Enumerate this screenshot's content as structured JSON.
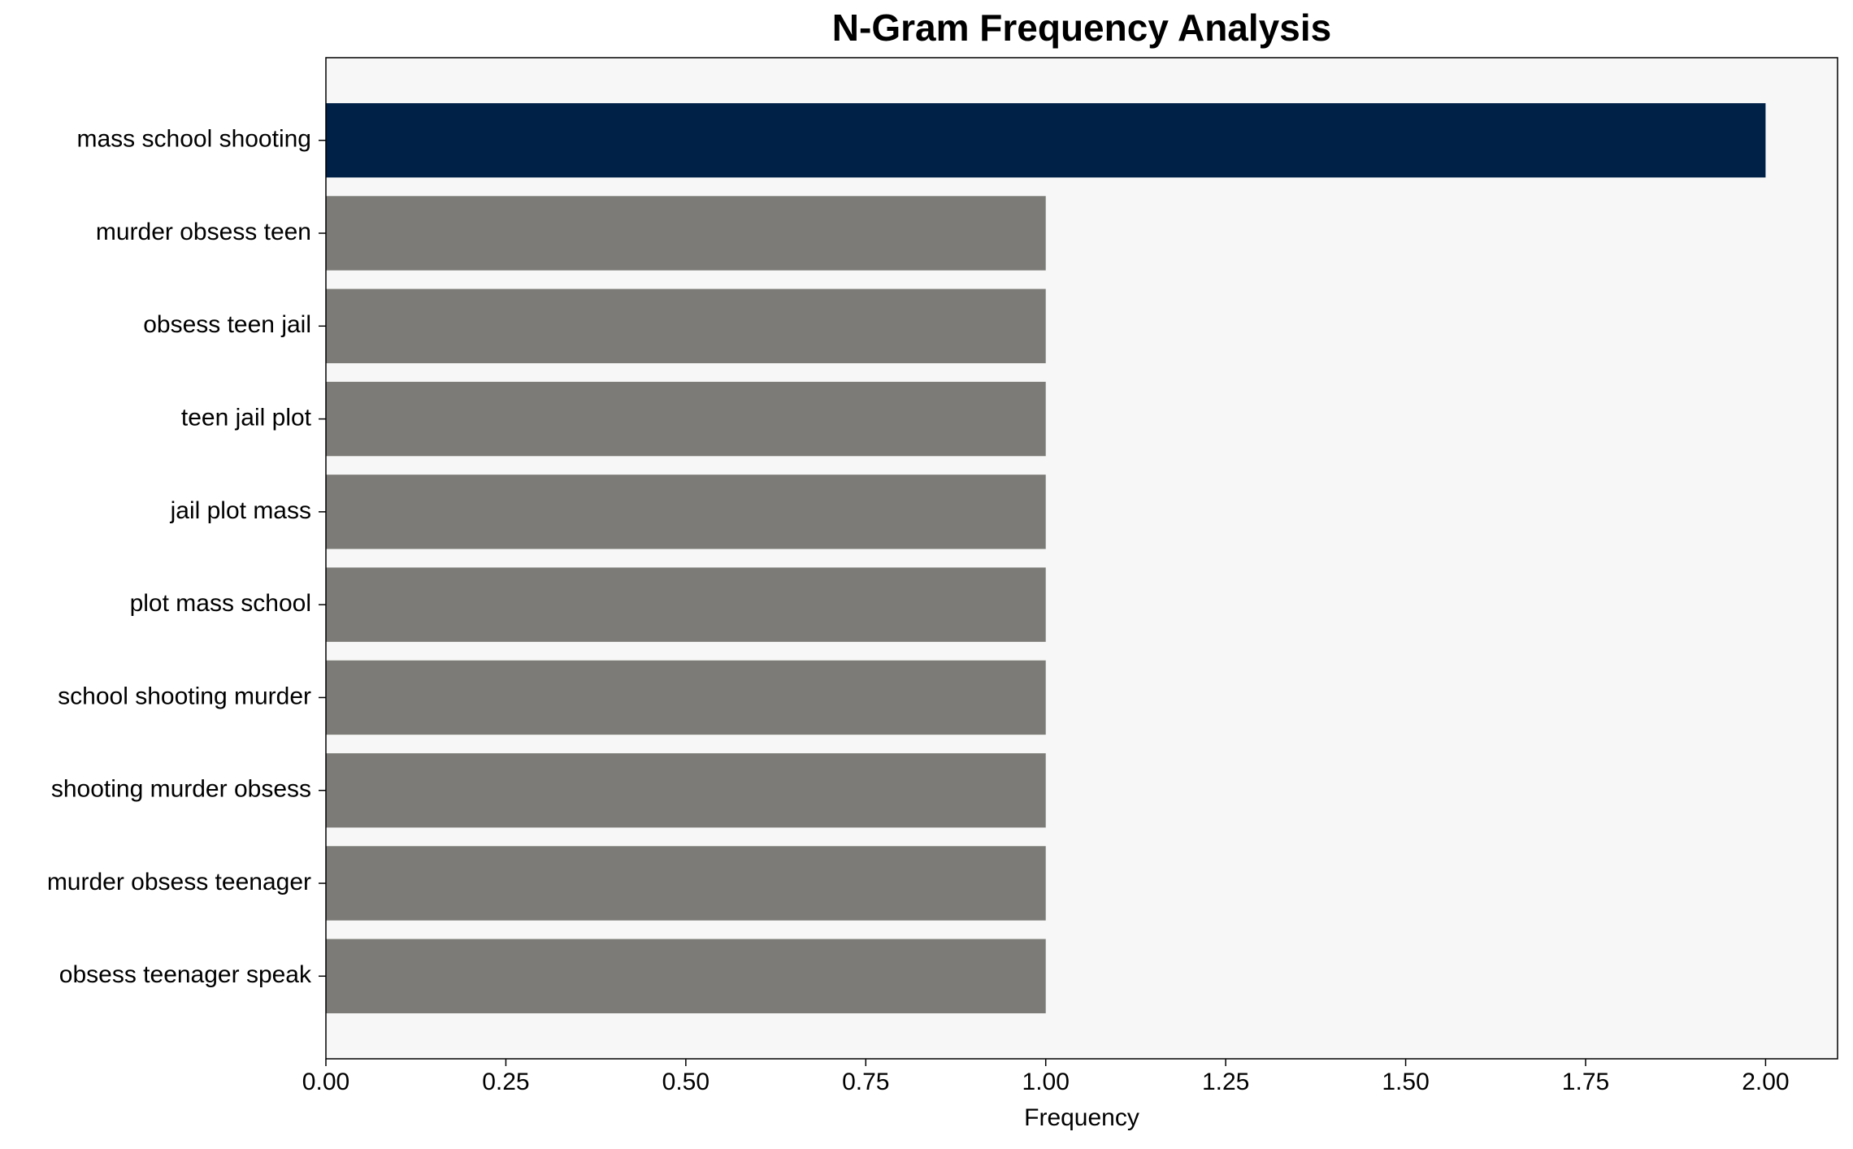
{
  "chart_data": {
    "type": "barh",
    "title": "N-Gram Frequency Analysis",
    "x_label": "Frequency",
    "categories": [
      "mass school shooting",
      "murder obsess teen",
      "obsess teen jail",
      "teen jail plot",
      "jail plot mass",
      "plot mass school",
      "school shooting murder",
      "shooting murder obsess",
      "murder obsess teenager",
      "obsess teenager speak"
    ],
    "values": [
      2,
      1,
      1,
      1,
      1,
      1,
      1,
      1,
      1,
      1
    ],
    "colors": [
      "#002147",
      "#7c7b77",
      "#7c7b77",
      "#7c7b77",
      "#7c7b77",
      "#7c7b77",
      "#7c7b77",
      "#7c7b77",
      "#7c7b77",
      "#7c7b77"
    ],
    "xlim": [
      0,
      2.1
    ],
    "xticks": [
      {
        "value": 0,
        "label": "0.00"
      },
      {
        "value": 0.25,
        "label": "0.25"
      },
      {
        "value": 0.5,
        "label": "0.50"
      },
      {
        "value": 0.75,
        "label": "0.75"
      },
      {
        "value": 1,
        "label": "1.00"
      },
      {
        "value": 1.25,
        "label": "1.25"
      },
      {
        "value": 1.5,
        "label": "1.50"
      },
      {
        "value": 1.75,
        "label": "1.75"
      },
      {
        "value": 2,
        "label": "2.00"
      }
    ],
    "grid": false
  }
}
